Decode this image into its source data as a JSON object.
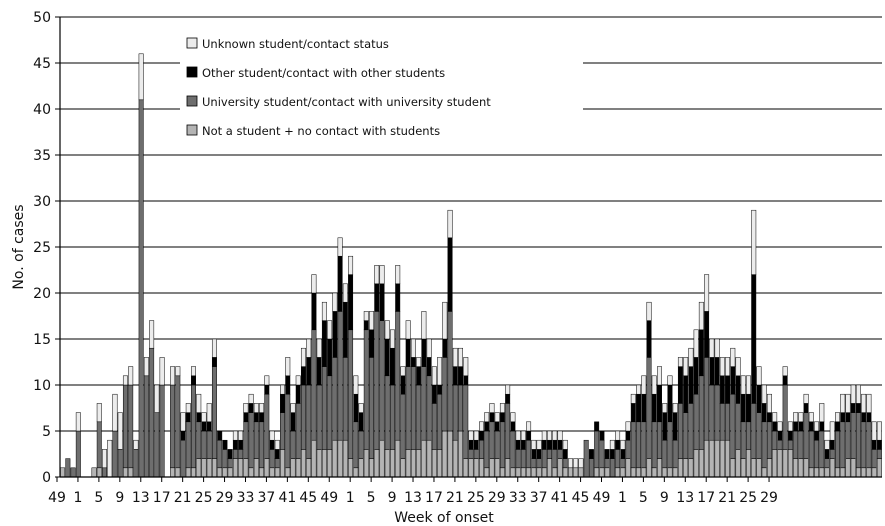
{
  "chart_data": {
    "type": "bar",
    "stacked": true,
    "title": "",
    "xlabel": "Week of onset",
    "ylabel": "No. of cases",
    "ylim": [
      0,
      50
    ],
    "yticks": [
      0,
      5,
      10,
      15,
      20,
      25,
      30,
      35,
      40,
      45,
      50
    ],
    "grid": true,
    "legend_position": "top-left",
    "x_tick_labels": [
      "49",
      "1",
      "5",
      "9",
      "13",
      "17",
      "21",
      "25",
      "29",
      "33",
      "37",
      "41",
      "45",
      "49",
      "1",
      "5",
      "9",
      "13",
      "17",
      "21",
      "25",
      "29",
      "33",
      "37",
      "41",
      "45",
      "49",
      "1",
      "5",
      "9",
      "13",
      "17",
      "21",
      "25",
      "29"
    ],
    "series": [
      {
        "name": "Not a student + no contact with students",
        "color": "#b4b4b4",
        "values": [
          1,
          0,
          0,
          0,
          0,
          0,
          1,
          1,
          0,
          0,
          0,
          0,
          1,
          1,
          0,
          0,
          0,
          0,
          0,
          0,
          0,
          1,
          1,
          0,
          1,
          1,
          2,
          2,
          2,
          2,
          1,
          1,
          1,
          2,
          2,
          2,
          1,
          2,
          1,
          2,
          1,
          1,
          3,
          1,
          2,
          2,
          3,
          2,
          4,
          3,
          3,
          3,
          4,
          4,
          4,
          2,
          1,
          2,
          3,
          2,
          3,
          4,
          3,
          3,
          4,
          2,
          3,
          3,
          3,
          4,
          4,
          3,
          3,
          5,
          5,
          4,
          5,
          2,
          2,
          2,
          2,
          1,
          2,
          2,
          1,
          2,
          1,
          1,
          1,
          1,
          1,
          1,
          1,
          2,
          1,
          2,
          1,
          1,
          1,
          1,
          0,
          0,
          1,
          1,
          1,
          0,
          1,
          1,
          2,
          1,
          1,
          1,
          2,
          1,
          2,
          1,
          1,
          1,
          2,
          2,
          2,
          3,
          3,
          4,
          4,
          4,
          4,
          4,
          2,
          3,
          2,
          3,
          2,
          2,
          1,
          2,
          3,
          3,
          3,
          3,
          2,
          2,
          2,
          1,
          1,
          1,
          1,
          2,
          1,
          1,
          2,
          2,
          1,
          1,
          1,
          1,
          2
        ]
      },
      {
        "name": "University student/contact with university student",
        "color": "#6e6e6e",
        "values": [
          0,
          2,
          1,
          5,
          0,
          0,
          0,
          5,
          1,
          0,
          5,
          3,
          9,
          9,
          3,
          41,
          11,
          14,
          7,
          10,
          0,
          9,
          10,
          4,
          5,
          9,
          4,
          3,
          3,
          10,
          3,
          2,
          1,
          1,
          1,
          4,
          6,
          4,
          5,
          7,
          2,
          1,
          4,
          8,
          3,
          6,
          7,
          8,
          12,
          7,
          9,
          8,
          9,
          14,
          9,
          14,
          5,
          3,
          13,
          11,
          15,
          13,
          8,
          7,
          14,
          7,
          9,
          9,
          7,
          8,
          7,
          5,
          6,
          8,
          13,
          6,
          5,
          8,
          1,
          1,
          2,
          4,
          4,
          3,
          5,
          6,
          4,
          2,
          2,
          3,
          1,
          1,
          2,
          1,
          2,
          1,
          1,
          0,
          0,
          0,
          4,
          2,
          4,
          3,
          1,
          2,
          2,
          1,
          2,
          5,
          5,
          5,
          11,
          5,
          4,
          3,
          5,
          3,
          6,
          5,
          6,
          6,
          8,
          9,
          6,
          6,
          4,
          4,
          7,
          5,
          4,
          3,
          6,
          5,
          5,
          4,
          2,
          1,
          7,
          1,
          3,
          3,
          5,
          4,
          3,
          4,
          1,
          1,
          4,
          5,
          4,
          5,
          6,
          5,
          5,
          2,
          1
        ]
      },
      {
        "name": "Other student/contact with other students",
        "color": "#000000",
        "values": [
          0,
          0,
          0,
          0,
          0,
          0,
          0,
          0,
          0,
          0,
          0,
          0,
          0,
          0,
          0,
          0,
          0,
          0,
          0,
          0,
          0,
          0,
          0,
          1,
          1,
          1,
          1,
          1,
          1,
          1,
          1,
          1,
          1,
          1,
          1,
          1,
          1,
          1,
          1,
          1,
          1,
          1,
          2,
          2,
          2,
          2,
          2,
          3,
          4,
          3,
          5,
          4,
          5,
          6,
          6,
          6,
          3,
          2,
          1,
          3,
          3,
          4,
          4,
          4,
          3,
          2,
          3,
          1,
          2,
          3,
          2,
          2,
          1,
          2,
          8,
          2,
          2,
          1,
          1,
          1,
          1,
          1,
          1,
          1,
          1,
          1,
          1,
          1,
          1,
          1,
          1,
          1,
          1,
          1,
          1,
          1,
          1,
          0,
          0,
          0,
          0,
          1,
          1,
          1,
          1,
          1,
          1,
          1,
          1,
          2,
          3,
          3,
          4,
          3,
          4,
          3,
          4,
          3,
          4,
          4,
          4,
          4,
          5,
          5,
          3,
          3,
          3,
          3,
          3,
          3,
          3,
          3,
          14,
          3,
          2,
          1,
          1,
          1,
          1,
          1,
          1,
          1,
          1,
          1,
          1,
          1,
          1,
          1,
          1,
          1,
          1,
          1,
          1,
          1,
          1,
          1,
          1
        ]
      },
      {
        "name": "Unknown student/contact status",
        "color": "#ececec",
        "values": [
          0,
          0,
          0,
          2,
          0,
          0,
          0,
          2,
          2,
          4,
          4,
          4,
          1,
          2,
          1,
          5,
          2,
          3,
          3,
          3,
          0,
          2,
          1,
          2,
          1,
          1,
          2,
          1,
          2,
          2,
          0,
          0,
          0,
          1,
          1,
          1,
          1,
          1,
          1,
          1,
          1,
          1,
          1,
          2,
          1,
          1,
          2,
          2,
          2,
          2,
          2,
          2,
          2,
          2,
          2,
          2,
          2,
          1,
          1,
          2,
          2,
          2,
          2,
          2,
          2,
          1,
          2,
          2,
          1,
          3,
          2,
          2,
          3,
          4,
          3,
          2,
          2,
          2,
          1,
          1,
          1,
          1,
          1,
          1,
          1,
          1,
          1,
          1,
          1,
          1,
          1,
          1,
          1,
          1,
          1,
          1,
          1,
          1,
          1,
          1,
          0,
          0,
          0,
          0,
          0,
          1,
          1,
          1,
          1,
          1,
          1,
          2,
          2,
          2,
          2,
          1,
          1,
          1,
          1,
          2,
          2,
          3,
          3,
          4,
          2,
          2,
          2,
          2,
          2,
          2,
          2,
          2,
          7,
          2,
          2,
          2,
          1,
          1,
          1,
          1,
          1,
          1,
          1,
          1,
          1,
          2,
          1,
          2,
          1,
          2,
          2,
          2,
          2,
          2,
          2,
          2,
          2
        ]
      }
    ]
  }
}
